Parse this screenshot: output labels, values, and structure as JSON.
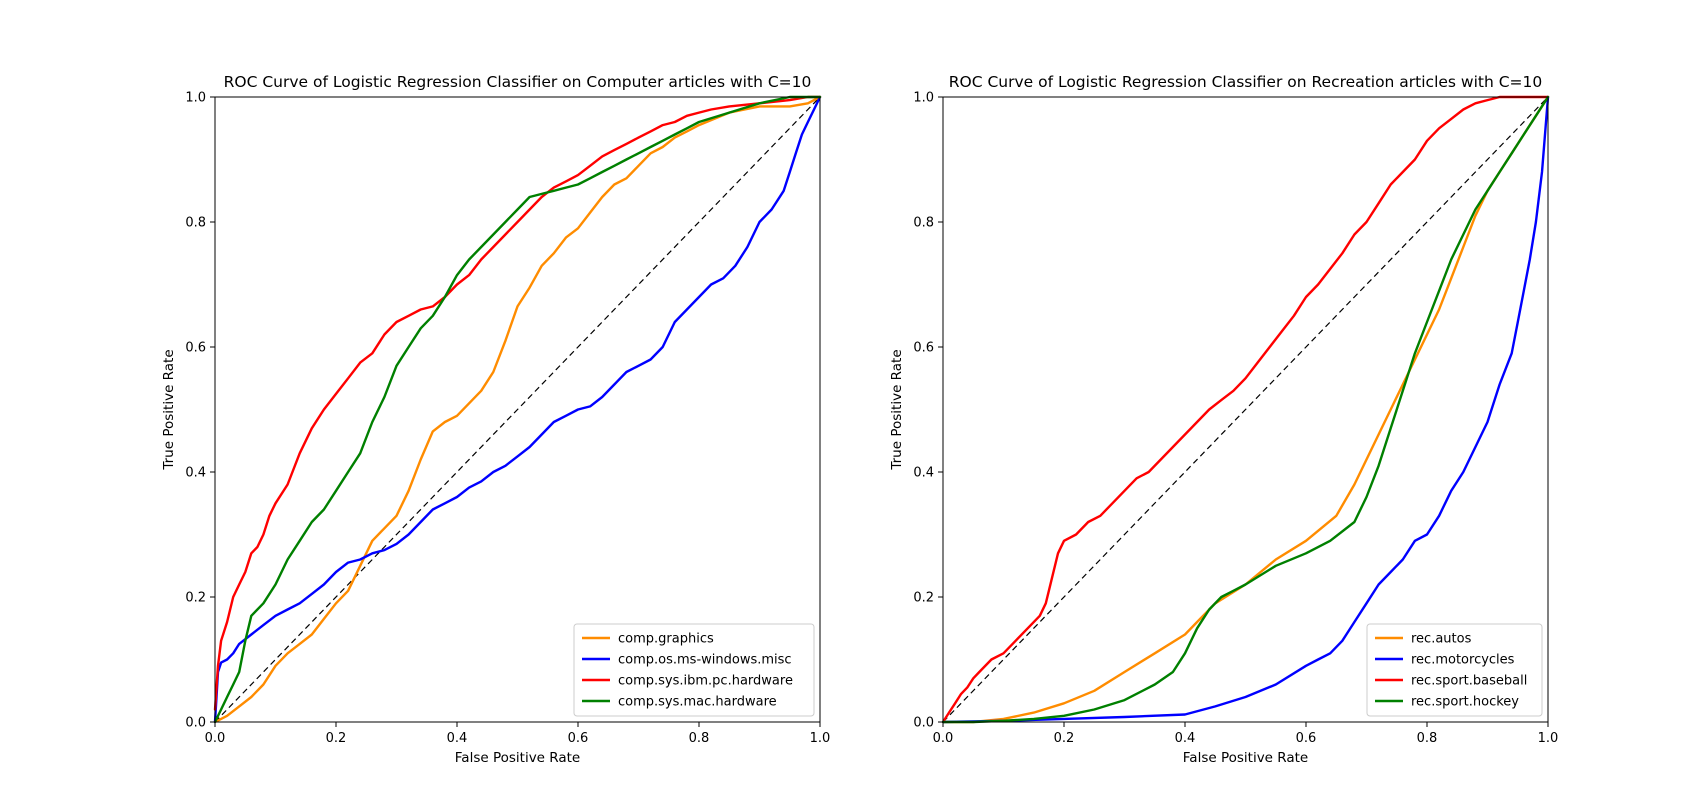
{
  "chart_data": [
    {
      "type": "line",
      "title": "ROC Curve of Logistic Regression Classifier on Computer articles with C=10",
      "xlabel": "False Positive Rate",
      "ylabel": "True Positive Rate",
      "xlim": [
        0,
        1
      ],
      "ylim": [
        0,
        1
      ],
      "xticks": [
        "0.0",
        "0.2",
        "0.4",
        "0.6",
        "0.8",
        "1.0"
      ],
      "yticks": [
        "0.0",
        "0.2",
        "0.4",
        "0.6",
        "0.8",
        "1.0"
      ],
      "grid": false,
      "legend_position": "lower-right",
      "reference_line": "diagonal-dashed",
      "series": [
        {
          "name": "comp.graphics",
          "color": "#ff8c00",
          "x": [
            0,
            0.01,
            0.02,
            0.04,
            0.06,
            0.08,
            0.1,
            0.12,
            0.14,
            0.16,
            0.18,
            0.2,
            0.22,
            0.24,
            0.26,
            0.28,
            0.3,
            0.32,
            0.34,
            0.36,
            0.38,
            0.4,
            0.42,
            0.44,
            0.46,
            0.48,
            0.5,
            0.52,
            0.54,
            0.56,
            0.58,
            0.6,
            0.62,
            0.64,
            0.66,
            0.68,
            0.7,
            0.72,
            0.74,
            0.76,
            0.78,
            0.8,
            0.85,
            0.9,
            0.95,
            0.98,
            1.0
          ],
          "y": [
            0,
            0.005,
            0.01,
            0.025,
            0.04,
            0.06,
            0.09,
            0.11,
            0.125,
            0.14,
            0.165,
            0.19,
            0.21,
            0.25,
            0.29,
            0.31,
            0.33,
            0.37,
            0.42,
            0.465,
            0.48,
            0.49,
            0.51,
            0.53,
            0.56,
            0.61,
            0.665,
            0.695,
            0.73,
            0.75,
            0.775,
            0.79,
            0.815,
            0.84,
            0.86,
            0.87,
            0.89,
            0.91,
            0.92,
            0.935,
            0.945,
            0.955,
            0.975,
            0.985,
            0.985,
            0.99,
            1.0
          ]
        },
        {
          "name": "comp.os.ms-windows.misc",
          "color": "#0000ff",
          "x": [
            0,
            0.005,
            0.01,
            0.02,
            0.03,
            0.04,
            0.06,
            0.08,
            0.1,
            0.12,
            0.14,
            0.16,
            0.18,
            0.2,
            0.22,
            0.24,
            0.26,
            0.28,
            0.3,
            0.32,
            0.34,
            0.36,
            0.38,
            0.4,
            0.42,
            0.44,
            0.46,
            0.48,
            0.5,
            0.52,
            0.54,
            0.56,
            0.58,
            0.6,
            0.62,
            0.64,
            0.66,
            0.68,
            0.7,
            0.72,
            0.74,
            0.76,
            0.78,
            0.8,
            0.82,
            0.84,
            0.86,
            0.88,
            0.9,
            0.92,
            0.94,
            0.95,
            0.96,
            0.97,
            0.98,
            0.99,
            1.0
          ],
          "y": [
            0,
            0.08,
            0.095,
            0.1,
            0.11,
            0.125,
            0.14,
            0.155,
            0.17,
            0.18,
            0.19,
            0.205,
            0.22,
            0.24,
            0.255,
            0.26,
            0.27,
            0.275,
            0.285,
            0.3,
            0.32,
            0.34,
            0.35,
            0.36,
            0.375,
            0.385,
            0.4,
            0.41,
            0.425,
            0.44,
            0.46,
            0.48,
            0.49,
            0.5,
            0.505,
            0.52,
            0.54,
            0.56,
            0.57,
            0.58,
            0.6,
            0.64,
            0.66,
            0.68,
            0.7,
            0.71,
            0.73,
            0.76,
            0.8,
            0.82,
            0.85,
            0.88,
            0.91,
            0.94,
            0.96,
            0.98,
            1.0
          ]
        },
        {
          "name": "comp.sys.ibm.pc.hardware",
          "color": "#ff0000",
          "x": [
            0,
            0.005,
            0.01,
            0.02,
            0.03,
            0.04,
            0.05,
            0.06,
            0.07,
            0.08,
            0.09,
            0.1,
            0.12,
            0.14,
            0.16,
            0.18,
            0.2,
            0.22,
            0.24,
            0.26,
            0.28,
            0.3,
            0.32,
            0.34,
            0.36,
            0.38,
            0.4,
            0.42,
            0.44,
            0.46,
            0.48,
            0.5,
            0.52,
            0.54,
            0.56,
            0.58,
            0.6,
            0.62,
            0.64,
            0.66,
            0.68,
            0.7,
            0.72,
            0.74,
            0.76,
            0.78,
            0.8,
            0.82,
            0.85,
            0.9,
            0.95,
            0.98,
            1.0
          ],
          "y": [
            0.02,
            0.09,
            0.13,
            0.16,
            0.2,
            0.22,
            0.24,
            0.27,
            0.28,
            0.3,
            0.33,
            0.35,
            0.38,
            0.43,
            0.47,
            0.5,
            0.525,
            0.55,
            0.575,
            0.59,
            0.62,
            0.64,
            0.65,
            0.66,
            0.665,
            0.68,
            0.7,
            0.715,
            0.74,
            0.76,
            0.78,
            0.8,
            0.82,
            0.84,
            0.855,
            0.865,
            0.875,
            0.89,
            0.905,
            0.915,
            0.925,
            0.935,
            0.945,
            0.955,
            0.96,
            0.97,
            0.975,
            0.98,
            0.985,
            0.99,
            0.995,
            1.0,
            1.0
          ]
        },
        {
          "name": "comp.sys.mac.hardware",
          "color": "#008000",
          "x": [
            0,
            0.01,
            0.02,
            0.03,
            0.04,
            0.05,
            0.06,
            0.08,
            0.1,
            0.12,
            0.14,
            0.16,
            0.18,
            0.2,
            0.22,
            0.24,
            0.26,
            0.28,
            0.3,
            0.32,
            0.34,
            0.36,
            0.38,
            0.4,
            0.42,
            0.44,
            0.46,
            0.48,
            0.5,
            0.52,
            0.54,
            0.56,
            0.58,
            0.6,
            0.62,
            0.64,
            0.66,
            0.68,
            0.7,
            0.72,
            0.74,
            0.76,
            0.78,
            0.8,
            0.85,
            0.9,
            0.95,
            1.0
          ],
          "y": [
            0,
            0.02,
            0.04,
            0.06,
            0.08,
            0.13,
            0.17,
            0.19,
            0.22,
            0.26,
            0.29,
            0.32,
            0.34,
            0.37,
            0.4,
            0.43,
            0.48,
            0.52,
            0.57,
            0.6,
            0.63,
            0.65,
            0.68,
            0.715,
            0.74,
            0.76,
            0.78,
            0.8,
            0.82,
            0.84,
            0.845,
            0.85,
            0.855,
            0.86,
            0.87,
            0.88,
            0.89,
            0.9,
            0.91,
            0.92,
            0.93,
            0.94,
            0.95,
            0.96,
            0.975,
            0.99,
            1.0,
            1.0
          ]
        }
      ]
    },
    {
      "type": "line",
      "title": "ROC Curve of Logistic Regression Classifier on Recreation articles with C=10",
      "xlabel": "False Positive Rate",
      "ylabel": "True Positive Rate",
      "xlim": [
        0,
        1
      ],
      "ylim": [
        0,
        1
      ],
      "xticks": [
        "0.0",
        "0.2",
        "0.4",
        "0.6",
        "0.8",
        "1.0"
      ],
      "yticks": [
        "0.0",
        "0.2",
        "0.4",
        "0.6",
        "0.8",
        "1.0"
      ],
      "grid": false,
      "legend_position": "lower-right",
      "reference_line": "diagonal-dashed",
      "series": [
        {
          "name": "rec.autos",
          "color": "#ff8c00",
          "x": [
            0,
            0.02,
            0.05,
            0.1,
            0.15,
            0.2,
            0.25,
            0.3,
            0.35,
            0.4,
            0.42,
            0.45,
            0.5,
            0.55,
            0.6,
            0.65,
            0.68,
            0.7,
            0.72,
            0.74,
            0.76,
            0.78,
            0.8,
            0.82,
            0.84,
            0.86,
            0.88,
            0.9,
            0.92,
            0.94,
            0.96,
            0.98,
            1.0
          ],
          "y": [
            0,
            0,
            0,
            0.005,
            0.015,
            0.03,
            0.05,
            0.08,
            0.11,
            0.14,
            0.16,
            0.19,
            0.22,
            0.26,
            0.29,
            0.33,
            0.38,
            0.42,
            0.46,
            0.5,
            0.54,
            0.58,
            0.62,
            0.66,
            0.71,
            0.76,
            0.81,
            0.85,
            0.88,
            0.91,
            0.94,
            0.97,
            1.0
          ]
        },
        {
          "name": "rec.motorcycles",
          "color": "#0000ff",
          "x": [
            0,
            0.1,
            0.2,
            0.3,
            0.4,
            0.45,
            0.5,
            0.55,
            0.6,
            0.62,
            0.64,
            0.66,
            0.68,
            0.7,
            0.72,
            0.74,
            0.76,
            0.78,
            0.8,
            0.82,
            0.84,
            0.86,
            0.88,
            0.9,
            0.92,
            0.94,
            0.95,
            0.96,
            0.97,
            0.98,
            0.99,
            1.0
          ],
          "y": [
            0,
            0.002,
            0.005,
            0.008,
            0.012,
            0.025,
            0.04,
            0.06,
            0.09,
            0.1,
            0.11,
            0.13,
            0.16,
            0.19,
            0.22,
            0.24,
            0.26,
            0.29,
            0.3,
            0.33,
            0.37,
            0.4,
            0.44,
            0.48,
            0.54,
            0.59,
            0.64,
            0.69,
            0.74,
            0.8,
            0.88,
            1.0
          ]
        },
        {
          "name": "rec.sport.baseball",
          "color": "#ff0000",
          "x": [
            0,
            0.01,
            0.02,
            0.03,
            0.04,
            0.05,
            0.06,
            0.08,
            0.1,
            0.12,
            0.14,
            0.16,
            0.17,
            0.18,
            0.19,
            0.2,
            0.22,
            0.24,
            0.26,
            0.28,
            0.3,
            0.32,
            0.34,
            0.36,
            0.38,
            0.4,
            0.42,
            0.44,
            0.46,
            0.48,
            0.5,
            0.52,
            0.54,
            0.56,
            0.58,
            0.6,
            0.62,
            0.64,
            0.66,
            0.68,
            0.7,
            0.72,
            0.74,
            0.76,
            0.78,
            0.8,
            0.82,
            0.84,
            0.86,
            0.88,
            0.9,
            0.92,
            0.95,
            1.0
          ],
          "y": [
            0,
            0.015,
            0.03,
            0.045,
            0.055,
            0.07,
            0.08,
            0.1,
            0.11,
            0.13,
            0.15,
            0.17,
            0.19,
            0.23,
            0.27,
            0.29,
            0.3,
            0.32,
            0.33,
            0.35,
            0.37,
            0.39,
            0.4,
            0.42,
            0.44,
            0.46,
            0.48,
            0.5,
            0.515,
            0.53,
            0.55,
            0.575,
            0.6,
            0.625,
            0.65,
            0.68,
            0.7,
            0.725,
            0.75,
            0.78,
            0.8,
            0.83,
            0.86,
            0.88,
            0.9,
            0.93,
            0.95,
            0.965,
            0.98,
            0.99,
            0.995,
            1.0,
            1.0,
            1.0
          ]
        },
        {
          "name": "rec.sport.hockey",
          "color": "#008000",
          "x": [
            0,
            0.05,
            0.1,
            0.15,
            0.2,
            0.25,
            0.3,
            0.35,
            0.38,
            0.4,
            0.42,
            0.44,
            0.46,
            0.48,
            0.5,
            0.55,
            0.6,
            0.64,
            0.68,
            0.7,
            0.72,
            0.74,
            0.76,
            0.78,
            0.8,
            0.82,
            0.84,
            0.86,
            0.88,
            0.9,
            0.92,
            0.94,
            0.96,
            0.98,
            1.0
          ],
          "y": [
            0,
            0,
            0.002,
            0.005,
            0.01,
            0.02,
            0.035,
            0.06,
            0.08,
            0.11,
            0.15,
            0.18,
            0.2,
            0.21,
            0.22,
            0.25,
            0.27,
            0.29,
            0.32,
            0.36,
            0.41,
            0.47,
            0.53,
            0.59,
            0.64,
            0.69,
            0.74,
            0.78,
            0.82,
            0.85,
            0.88,
            0.91,
            0.94,
            0.97,
            1.0
          ]
        }
      ]
    }
  ]
}
